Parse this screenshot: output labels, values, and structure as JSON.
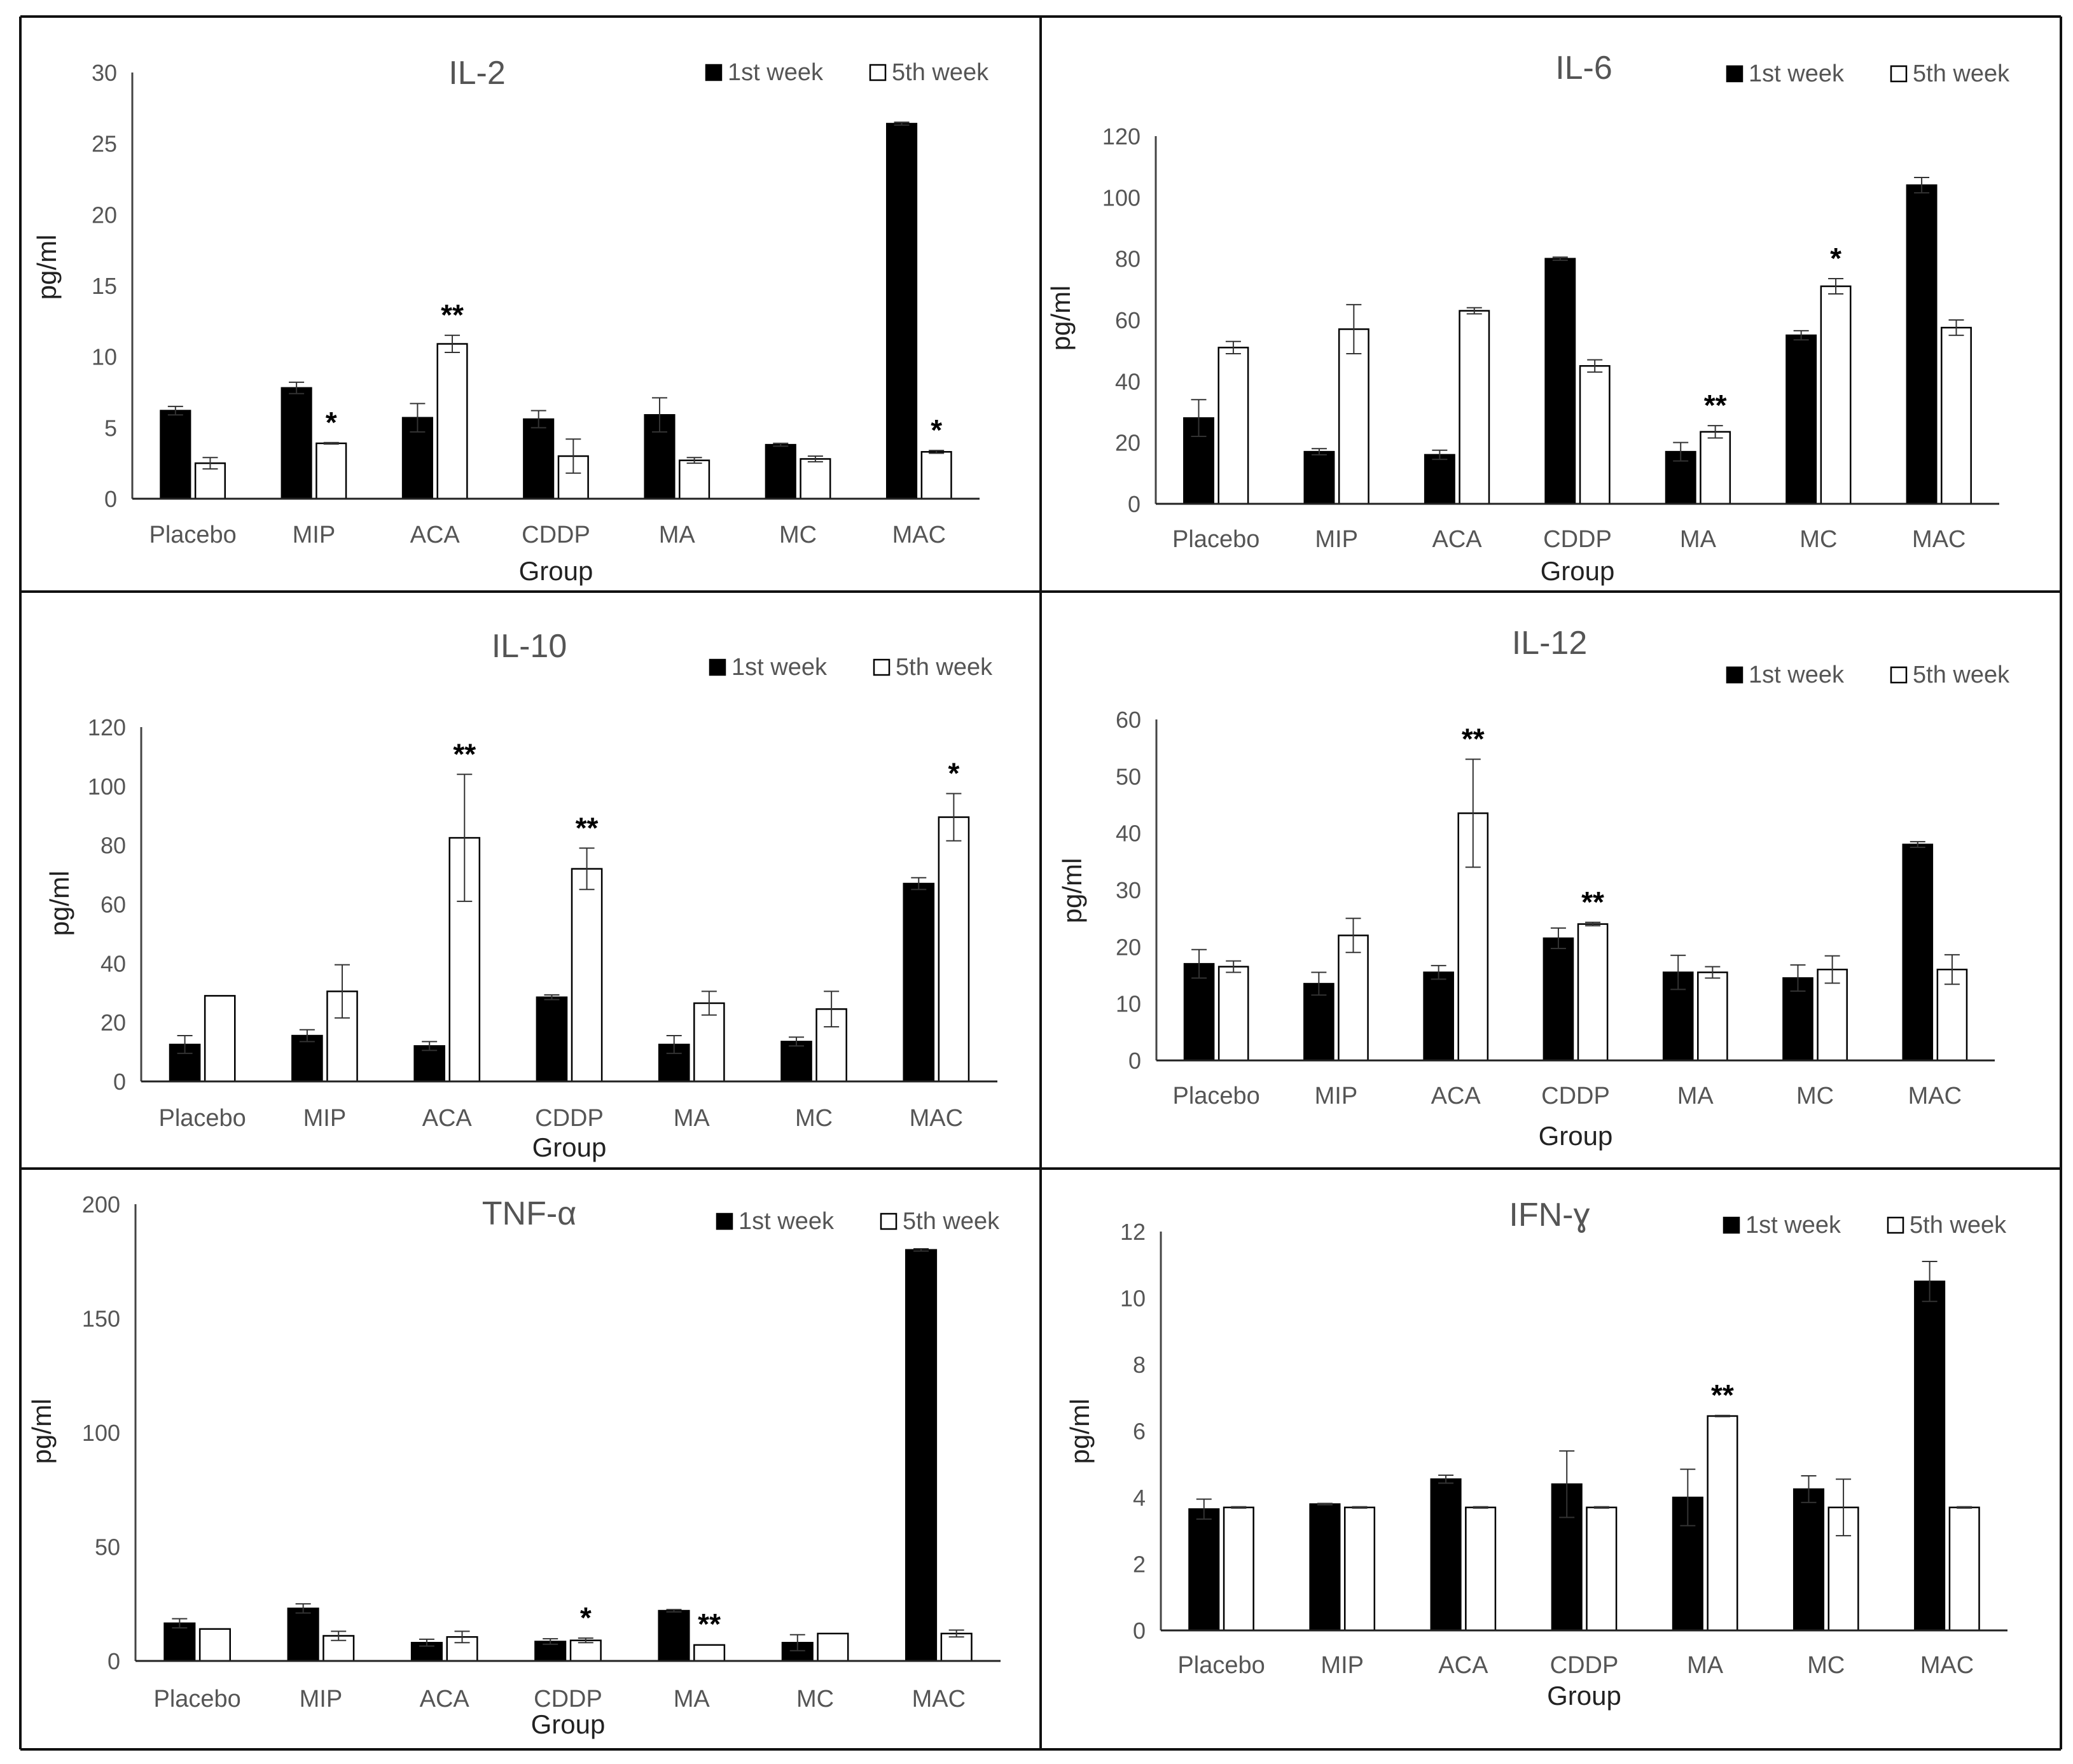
{
  "chart_data": [
    {
      "type": "bar",
      "title": "IL-2",
      "xlabel": "Group",
      "ylabel": "pg/ml",
      "categories": [
        "Placebo",
        "MIP",
        "ACA",
        "CDDP",
        "MA",
        "MC",
        "MAC"
      ],
      "ylim": [
        0,
        30
      ],
      "yticks": [
        "0",
        "5",
        "10",
        "15",
        "20",
        "25",
        "30"
      ],
      "series": [
        {
          "name": "1st week",
          "color": "#000000",
          "values": [
            6.2,
            7.8,
            5.7,
            5.6,
            5.9,
            3.8,
            26.4
          ],
          "errors": [
            0.3,
            0.4,
            1.0,
            0.6,
            1.2,
            0.1,
            0.1
          ]
        },
        {
          "name": "5th week",
          "color": "#ffffff",
          "values": [
            2.5,
            3.9,
            10.9,
            3.0,
            2.7,
            2.8,
            3.3
          ],
          "errors": [
            0.4,
            0.05,
            0.6,
            1.2,
            0.2,
            0.2,
            0.1
          ]
        }
      ],
      "significance": [
        {
          "series": 1,
          "index": 1,
          "mark": "*"
        },
        {
          "series": 1,
          "index": 2,
          "mark": "**"
        },
        {
          "series": 1,
          "index": 6,
          "mark": "*"
        }
      ]
    },
    {
      "type": "bar",
      "title": "IL-6",
      "xlabel": "Group",
      "ylabel": "pg/ml",
      "categories": [
        "Placebo",
        "MIP",
        "ACA",
        "CDDP",
        "MA",
        "MC",
        "MAC"
      ],
      "ylim": [
        0,
        120
      ],
      "yticks": [
        "0",
        "20",
        "40",
        "60",
        "80",
        "100",
        "120"
      ],
      "series": [
        {
          "name": "1st week",
          "color": "#000000",
          "values": [
            28,
            17,
            16,
            80,
            17,
            55,
            104
          ],
          "errors": [
            6,
            1,
            1.5,
            0.5,
            3,
            1.5,
            2.5
          ]
        },
        {
          "name": "5th week",
          "color": "#ffffff",
          "values": [
            51,
            57,
            63,
            45,
            23.5,
            71,
            57.5
          ],
          "errors": [
            2,
            8,
            1,
            2,
            2,
            2.5,
            2.5
          ]
        }
      ],
      "significance": [
        {
          "series": 1,
          "index": 4,
          "mark": "**"
        },
        {
          "series": 1,
          "index": 5,
          "mark": "*"
        }
      ]
    },
    {
      "type": "bar",
      "title": "IL-10",
      "xlabel": "Group",
      "ylabel": "pg/ml",
      "categories": [
        "Placebo",
        "MIP",
        "ACA",
        "CDDP",
        "MA",
        "MC",
        "MAC"
      ],
      "ylim": [
        0,
        120
      ],
      "yticks": [
        "0",
        "20",
        "40",
        "60",
        "80",
        "100",
        "120"
      ],
      "series": [
        {
          "name": "1st week",
          "color": "#000000",
          "values": [
            12.5,
            15.5,
            12,
            28.5,
            12.5,
            13.5,
            67
          ],
          "errors": [
            3,
            2,
            1.5,
            0.8,
            3,
            1.5,
            2
          ]
        },
        {
          "name": "5th week",
          "color": "#ffffff",
          "values": [
            29,
            30.5,
            82.5,
            72,
            26.5,
            24.5,
            89.5
          ],
          "errors": [
            0.1,
            9,
            21.5,
            7,
            4,
            6,
            8
          ]
        }
      ],
      "significance": [
        {
          "series": 1,
          "index": 2,
          "mark": "**"
        },
        {
          "series": 1,
          "index": 3,
          "mark": "**"
        },
        {
          "series": 1,
          "index": 6,
          "mark": "*"
        }
      ]
    },
    {
      "type": "bar",
      "title": "IL-12",
      "xlabel": "Group",
      "ylabel": "pg/ml",
      "categories": [
        "Placebo",
        "MIP",
        "ACA",
        "CDDP",
        "MA",
        "MC",
        "MAC"
      ],
      "ylim": [
        0,
        60
      ],
      "yticks": [
        "0",
        "10",
        "20",
        "30",
        "40",
        "50",
        "60"
      ],
      "series": [
        {
          "name": "1st week",
          "color": "#000000",
          "values": [
            17,
            13.5,
            15.5,
            21.5,
            15.5,
            14.5,
            38
          ],
          "errors": [
            2.5,
            2,
            1.2,
            1.8,
            3,
            2.3,
            0.5
          ]
        },
        {
          "name": "5th week",
          "color": "#ffffff",
          "values": [
            16.5,
            22,
            43.5,
            24,
            15.5,
            16,
            16
          ],
          "errors": [
            1,
            3,
            9.5,
            0.3,
            1,
            2.4,
            2.6
          ]
        }
      ],
      "significance": [
        {
          "series": 1,
          "index": 2,
          "mark": "**"
        },
        {
          "series": 1,
          "index": 3,
          "mark": "**"
        }
      ]
    },
    {
      "type": "bar",
      "title": "TNF-α",
      "xlabel": "Group",
      "ylabel": "pg/ml",
      "categories": [
        "Placebo",
        "MIP",
        "ACA",
        "CDDP",
        "MA",
        "MC",
        "MAC"
      ],
      "ylim": [
        0,
        200
      ],
      "yticks": [
        "0",
        "50",
        "100",
        "150",
        "200"
      ],
      "series": [
        {
          "name": "1st week",
          "color": "#000000",
          "values": [
            16.5,
            23,
            8,
            8.5,
            22,
            8,
            180
          ],
          "errors": [
            2,
            2,
            1.5,
            1.2,
            0.5,
            3.5,
            0.5
          ]
        },
        {
          "name": "5th week",
          "color": "#ffffff",
          "values": [
            14,
            11,
            10.5,
            9,
            7,
            12,
            12
          ],
          "errors": [
            0.1,
            2,
            2.5,
            1,
            0.2,
            0.1,
            1.5
          ]
        }
      ],
      "significance": [
        {
          "series": 1,
          "index": 3,
          "mark": "*"
        },
        {
          "series": 1,
          "index": 4,
          "mark": "**"
        }
      ]
    },
    {
      "type": "bar",
      "title": "IFN-ɣ",
      "xlabel": "Group",
      "ylabel": "pg/ml",
      "categories": [
        "Placebo",
        "MIP",
        "ACA",
        "CDDP",
        "MA",
        "MC",
        "MAC"
      ],
      "ylim": [
        0,
        12
      ],
      "yticks": [
        "0",
        "2",
        "4",
        "6",
        "8",
        "10",
        "12"
      ],
      "series": [
        {
          "name": "1st week",
          "color": "#000000",
          "values": [
            3.65,
            3.8,
            4.55,
            4.4,
            4.0,
            4.25,
            10.5
          ],
          "errors": [
            0.3,
            0.02,
            0.12,
            1.0,
            0.85,
            0.4,
            0.6
          ]
        },
        {
          "name": "5th week",
          "color": "#ffffff",
          "values": [
            3.7,
            3.7,
            3.7,
            3.7,
            6.45,
            3.7,
            3.7
          ],
          "errors": [
            0.02,
            0.02,
            0.02,
            0.02,
            0.02,
            0.85,
            0.02
          ]
        }
      ],
      "significance": [
        {
          "series": 1,
          "index": 4,
          "mark": "**"
        }
      ]
    }
  ]
}
